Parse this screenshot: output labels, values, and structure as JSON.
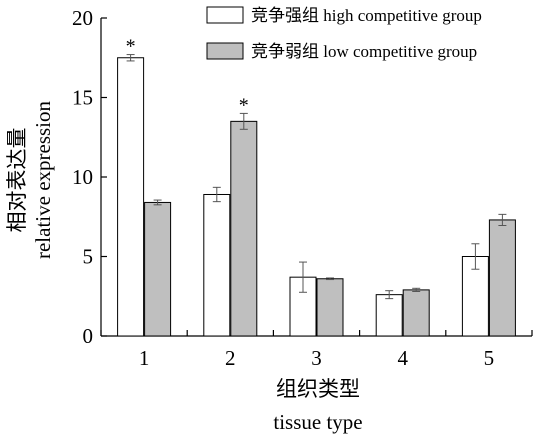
{
  "chart_data": {
    "type": "bar",
    "categories": [
      "1",
      "2",
      "3",
      "4",
      "5"
    ],
    "series": [
      {
        "name": "竞争强组 high competitive group",
        "values": [
          17.5,
          8.9,
          3.7,
          2.6,
          5.0
        ],
        "errors": [
          0.2,
          0.45,
          0.95,
          0.25,
          0.8
        ],
        "significant": [
          true,
          false,
          false,
          false,
          false
        ],
        "color": "#ffffff"
      },
      {
        "name": "竞争弱组 low competitive group",
        "values": [
          8.4,
          13.5,
          3.6,
          2.9,
          7.3
        ],
        "errors": [
          0.15,
          0.5,
          0.05,
          0.1,
          0.35
        ],
        "significant": [
          false,
          true,
          false,
          false,
          false
        ],
        "color": "#bfbfbf"
      }
    ],
    "ylabel": [
      "相对表达量",
      "relative expression"
    ],
    "xlabel": [
      "组织类型",
      "tissue type"
    ],
    "yticks": [
      0,
      5,
      10,
      15,
      20
    ],
    "ylim": [
      0,
      20
    ],
    "significance_mark": "*",
    "legend_position": "top-right",
    "grid": false
  }
}
